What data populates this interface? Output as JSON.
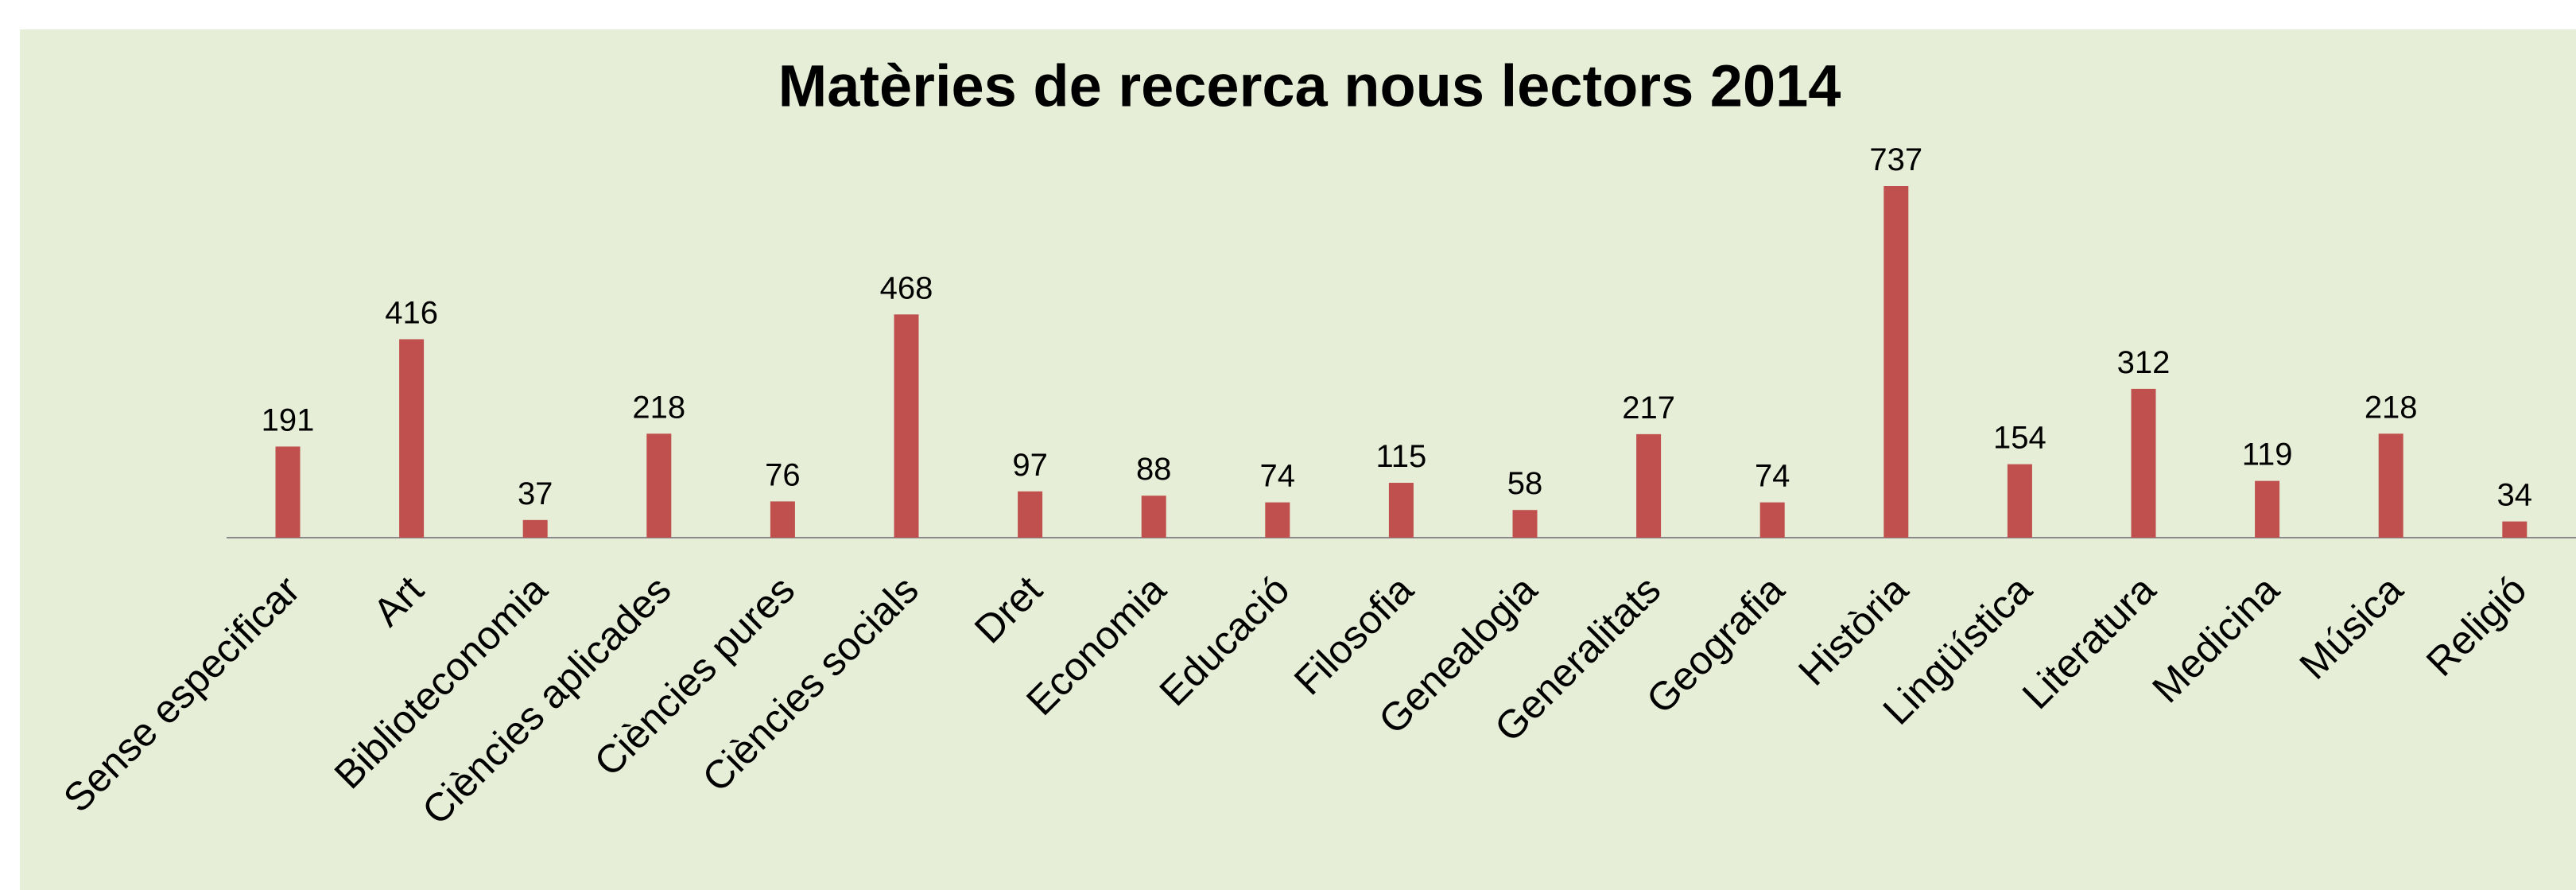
{
  "chart_data": {
    "type": "bar",
    "title": "Matèries de recerca nous lectors 2014",
    "categories": [
      "Sense especificar",
      "Art",
      "Biblioteconomia",
      "Ciències aplicades",
      "Ciències pures",
      "Ciències socials",
      "Dret",
      "Economia",
      "Educació",
      "Filosofia",
      "Genealogia",
      "Generalitats",
      "Geografia",
      "Història",
      "Lingüística",
      "Literatura",
      "Medicina",
      "Música",
      "Religió"
    ],
    "values": [
      191,
      416,
      37,
      218,
      76,
      468,
      97,
      88,
      74,
      115,
      58,
      217,
      74,
      737,
      154,
      312,
      119,
      218,
      34
    ],
    "color": "#c0504d",
    "background": "#e6eed7"
  }
}
